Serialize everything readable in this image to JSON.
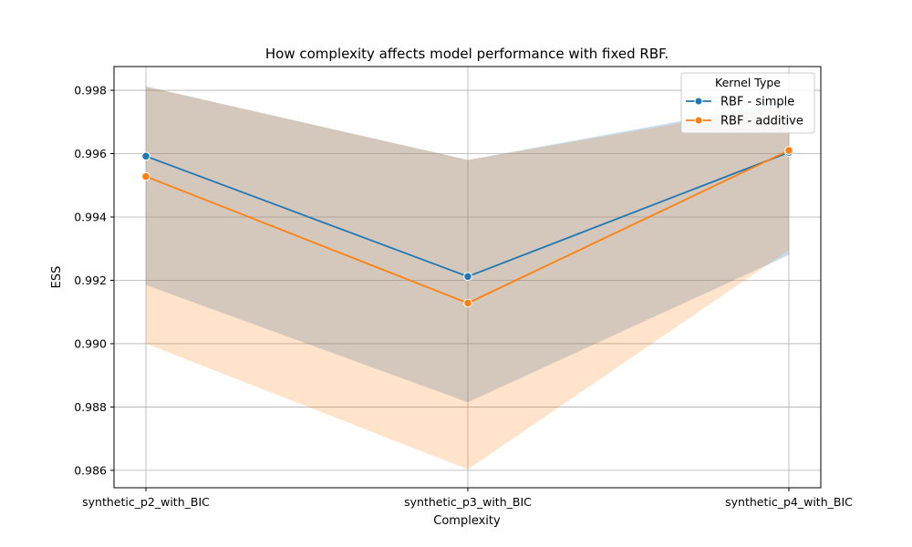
{
  "chart_data": {
    "type": "line",
    "title": "How complexity affects model performance with fixed RBF.",
    "xlabel": "Complexity",
    "ylabel": "ESS",
    "categories": [
      "synthetic_p2_with_BIC",
      "synthetic_p3_with_BIC",
      "synthetic_p4_with_BIC"
    ],
    "ylim": [
      0.98545,
      0.99875
    ],
    "yticks": [
      "0.986",
      "0.988",
      "0.990",
      "0.992",
      "0.994",
      "0.996",
      "0.998"
    ],
    "grid": true,
    "legend": {
      "title": "Kernel Type",
      "placement": "top-right"
    },
    "series": [
      {
        "name": "RBF - simple",
        "color": "#1f77b4",
        "values": [
          0.99592,
          0.99212,
          0.99604
        ],
        "band_lower": [
          0.99185,
          0.98815,
          0.9928
        ],
        "band_upper": [
          0.99812,
          0.9958,
          0.99765
        ]
      },
      {
        "name": "RBF - additive",
        "color": "#ff7f0e",
        "values": [
          0.99528,
          0.99128,
          0.9961
        ],
        "band_lower": [
          0.99,
          0.98603,
          0.99295
        ],
        "band_upper": [
          0.99812,
          0.9958,
          0.99755
        ]
      }
    ]
  }
}
